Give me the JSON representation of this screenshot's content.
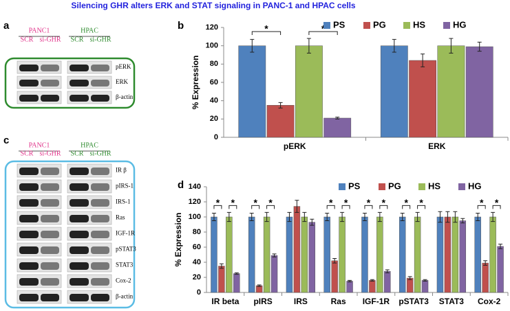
{
  "title": "Silencing GHR alters ERK and STAT signaling in PANC-1 and HPAC cells",
  "blots": [
    {
      "panel": "a",
      "groups": [
        "PANC1",
        "HPAC"
      ],
      "lanes": [
        "SCR",
        "si-GHR"
      ],
      "rows": [
        "pERK",
        "ERK",
        "β-actin"
      ]
    },
    {
      "panel": "c",
      "groups": [
        "PANC1",
        "HPAC"
      ],
      "lanes": [
        "SCR",
        "si-GHR"
      ],
      "rows": [
        "IR β",
        "pIRS-1",
        "IRS-1",
        "Ras",
        "IGF-1R",
        "pSTAT3",
        "STAT3",
        "Cox-2",
        "β-actin"
      ]
    }
  ],
  "chart_data": [
    {
      "type": "bar",
      "panel": "b",
      "y_label": "% Expression",
      "categories": [
        "pERK",
        "ERK"
      ],
      "series": [
        {
          "name": "PS",
          "color": "#4f81bd",
          "values": [
            100,
            100
          ],
          "errors": [
            7,
            7
          ]
        },
        {
          "name": "PG",
          "color": "#c0504d",
          "values": [
            35,
            84
          ],
          "errors": [
            3,
            7
          ]
        },
        {
          "name": "HS",
          "color": "#9bbb59",
          "values": [
            100,
            100
          ],
          "errors": [
            8,
            8
          ]
        },
        {
          "name": "HG",
          "color": "#8064a2",
          "values": [
            21,
            99
          ],
          "errors": [
            1,
            5
          ]
        }
      ],
      "ylim": [
        0,
        120
      ],
      "yticks": [
        0,
        20,
        40,
        60,
        80,
        100,
        120
      ],
      "legend": "top-right",
      "significance_marker": "*",
      "significant": [
        true,
        false
      ]
    },
    {
      "type": "bar",
      "panel": "d",
      "y_label": "% Expression",
      "categories": [
        "IR beta",
        "pIRS",
        "IRS",
        "Ras",
        "IGF-1R",
        "pSTAT3",
        "STAT3",
        "Cox-2"
      ],
      "series": [
        {
          "name": "PS",
          "color": "#4f81bd",
          "values": [
            100,
            100,
            100,
            100,
            100,
            100,
            100,
            100
          ],
          "errors": [
            5,
            5,
            6,
            5,
            5,
            5,
            7,
            5
          ]
        },
        {
          "name": "PG",
          "color": "#c0504d",
          "values": [
            35,
            9,
            114,
            42,
            16,
            19,
            100,
            39
          ],
          "errors": [
            3,
            1,
            8,
            3,
            1,
            2,
            7,
            3
          ]
        },
        {
          "name": "HS",
          "color": "#9bbb59",
          "values": [
            100,
            100,
            100,
            100,
            100,
            100,
            100,
            100
          ],
          "errors": [
            6,
            6,
            6,
            6,
            6,
            6,
            7,
            6
          ]
        },
        {
          "name": "HG",
          "color": "#8064a2",
          "values": [
            25,
            49,
            93,
            15,
            28,
            16,
            95,
            61
          ],
          "errors": [
            1,
            2,
            4,
            1,
            2,
            1,
            3,
            3
          ]
        }
      ],
      "ylim": [
        0,
        140
      ],
      "yticks": [
        0,
        20,
        40,
        60,
        80,
        100,
        120,
        140
      ],
      "legend": "top-right",
      "significance_marker": "*",
      "significant": [
        true,
        true,
        false,
        true,
        true,
        true,
        false,
        true
      ]
    }
  ]
}
